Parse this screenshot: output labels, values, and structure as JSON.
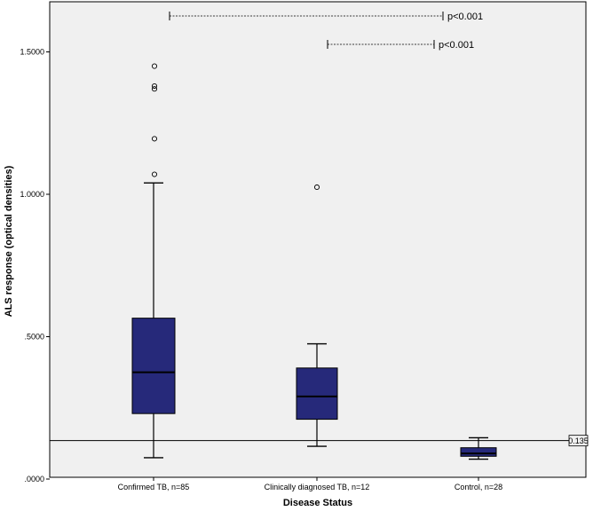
{
  "chart_data": {
    "type": "boxplot",
    "xlabel": "Disease Status",
    "ylabel": "ALS response (optical densities)",
    "ylim": [
      0,
      1.66
    ],
    "yticks": [
      0,
      0.5,
      1.0,
      1.5
    ],
    "ytick_labels": [
      ".0000",
      ".5000",
      "1.0000",
      "1.5000"
    ],
    "categories": [
      "Confirmed TB, n=85",
      "Clinically diagnosed TB, n=12",
      "Control, n=28"
    ],
    "boxes": [
      {
        "whisker_low": 0.075,
        "q1": 0.23,
        "median": 0.375,
        "q3": 0.565,
        "whisker_high": 1.04,
        "outliers": [
          1.07,
          1.195,
          1.37,
          1.38,
          1.45
        ]
      },
      {
        "whisker_low": 0.115,
        "q1": 0.21,
        "median": 0.29,
        "q3": 0.39,
        "whisker_high": 0.475,
        "outliers": [
          1.025
        ]
      },
      {
        "whisker_low": 0.07,
        "q1": 0.08,
        "median": 0.09,
        "q3": 0.11,
        "whisker_high": 0.145,
        "outliers": []
      }
    ],
    "reference_line": {
      "value": 0.135,
      "label": "0.135"
    },
    "comparisons": [
      {
        "from": 0,
        "to": 2,
        "label": "p<0.001"
      },
      {
        "from": 1,
        "to": 2,
        "label": "p<0.001"
      }
    ],
    "colors": {
      "box_fill": "#26297a",
      "plot_bg": "#f0f0f0"
    },
    "grid": false
  }
}
